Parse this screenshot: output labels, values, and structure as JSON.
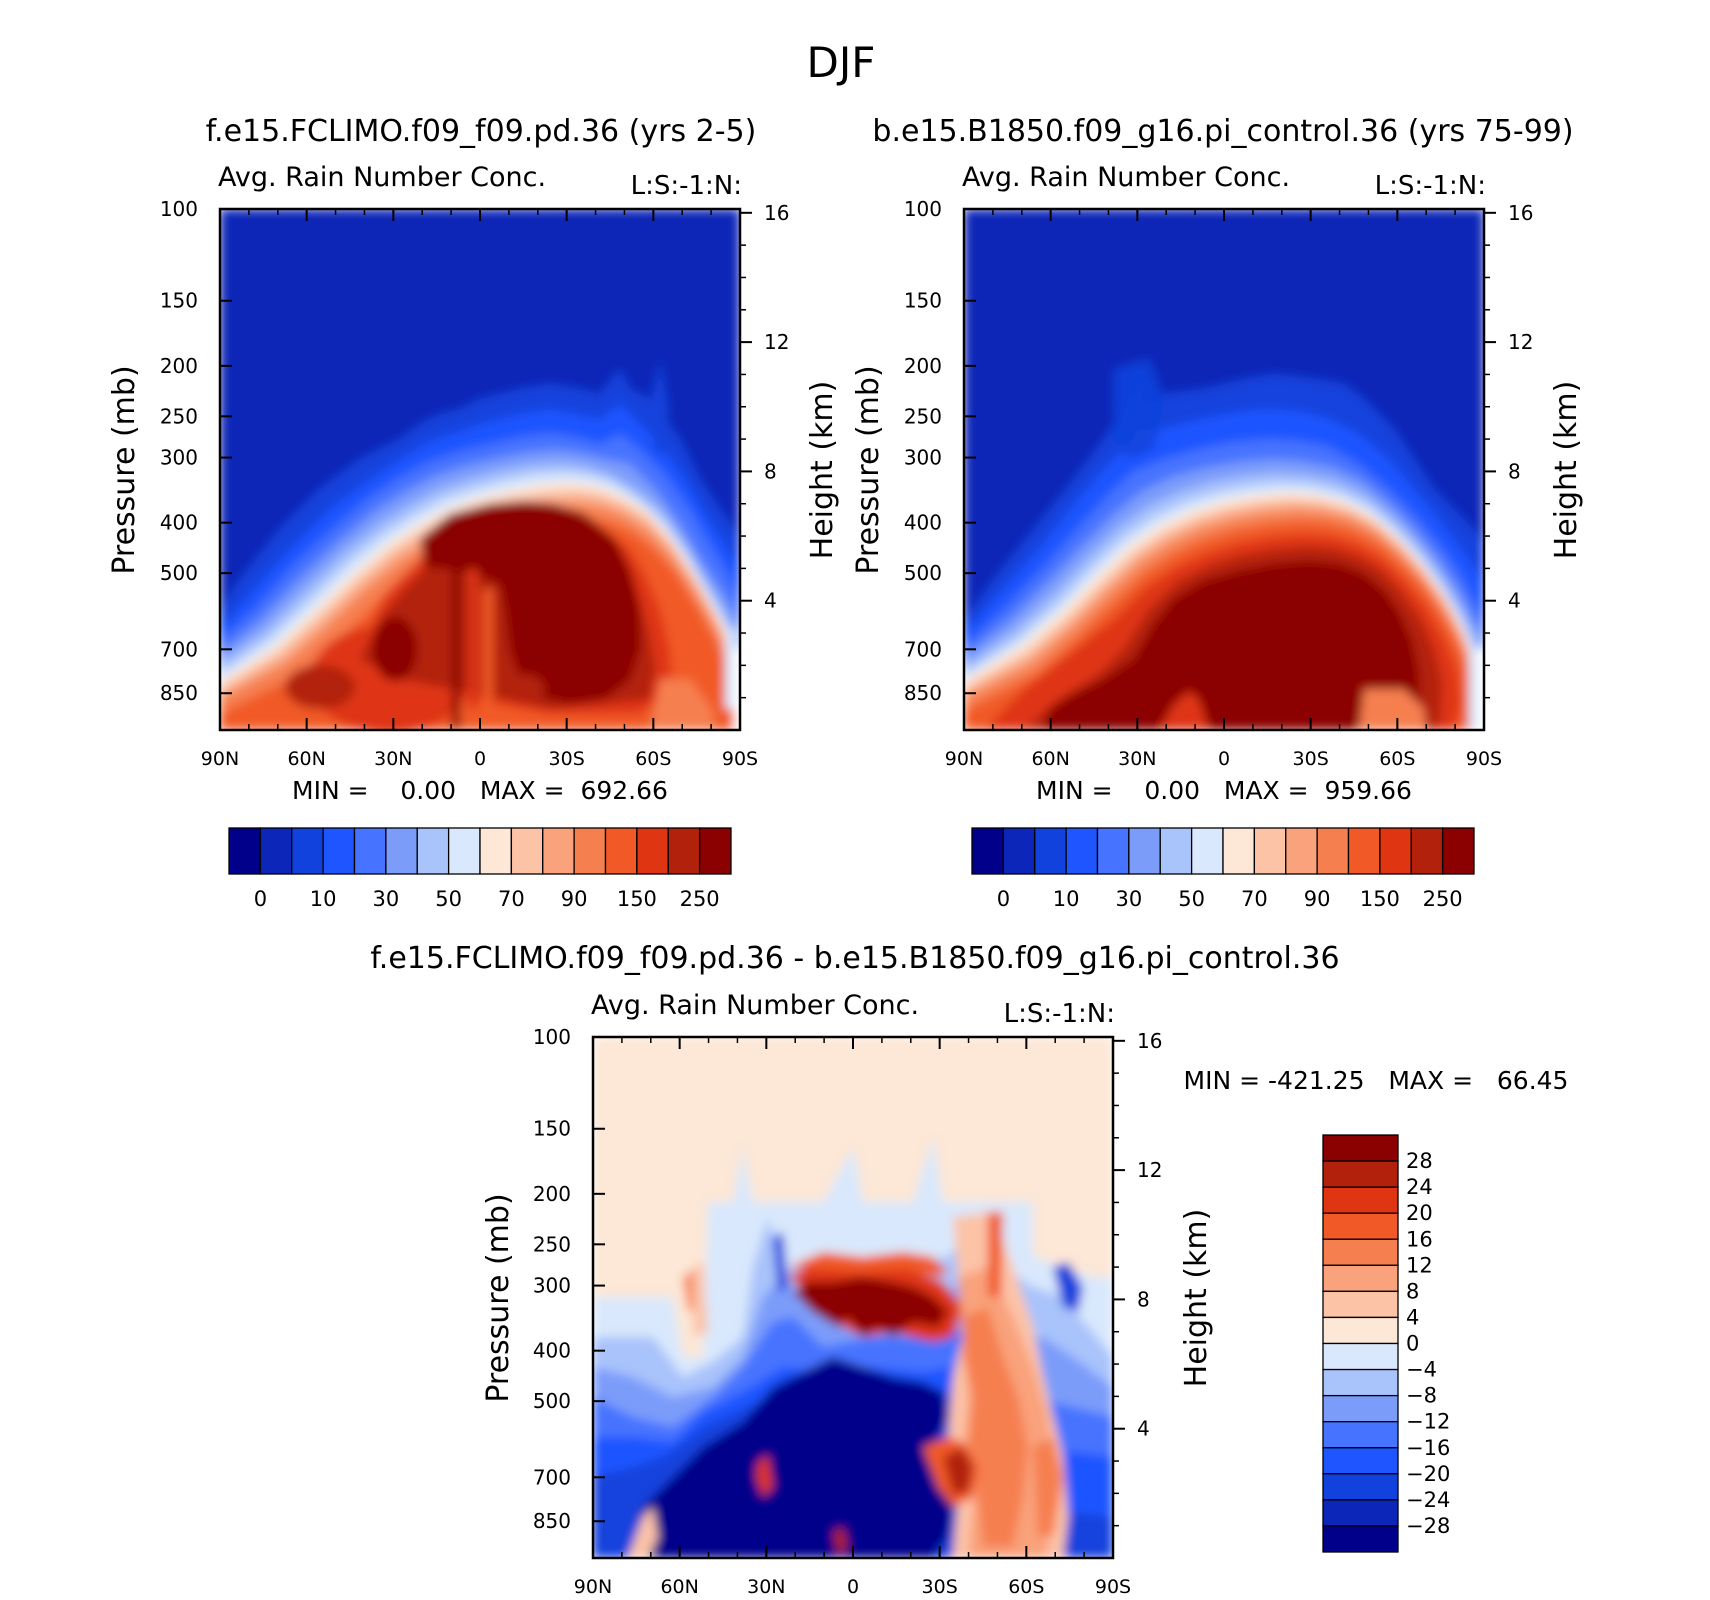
{
  "figure": {
    "season": "DJF",
    "panel_a_title": "f.e15.FCLIMO.f09_f09.pd.36 (yrs 2-5)",
    "panel_b_title": "b.e15.B1850.f09_g16.pi_control.36 (yrs 75-99)",
    "panel_c_title": "f.e15.FCLIMO.f09_f09.pd.36 - b.e15.B1850.f09_g16.pi_control.36"
  },
  "chart_data": [
    {
      "type": "heatmap",
      "id": "panel_a",
      "subtitle": "Avg. Rain Number Conc.",
      "units_label": "L:S:-1:N:",
      "xlabel": "",
      "ylabel": "Pressure (mb)",
      "y2label": "Height (km)",
      "x_ticks": [
        "90N",
        "60N",
        "30N",
        "0",
        "30S",
        "60S",
        "90S"
      ],
      "y_ticks": [
        100,
        150,
        200,
        250,
        300,
        400,
        500,
        700,
        850
      ],
      "y_ticks_text": [
        "100",
        "150",
        "200",
        "250",
        "300",
        "400",
        "500",
        "700",
        "850"
      ],
      "y2_ticks": [
        4,
        8,
        12,
        16
      ],
      "y2_ticks_text": [
        "4",
        "8",
        "12",
        "16"
      ],
      "ylim": [
        100,
        1000
      ],
      "stats": "MIN =    0.00   MAX =  692.66",
      "min": 0.0,
      "max": 692.66,
      "colorbar_labels": [
        "0",
        "10",
        "30",
        "50",
        "70",
        "90",
        "150",
        "250"
      ],
      "colorbar_colors": [
        "#00008b",
        "#0b26b8",
        "#1242dd",
        "#1f55ff",
        "#4673ff",
        "#7c9cfa",
        "#a9c3fb",
        "#d9e8fc",
        "#fde7d6",
        "#fcc3a7",
        "#f9a27c",
        "#f67f50",
        "#f15a26",
        "#df3512",
        "#b2210b",
        "#8b0000"
      ]
    },
    {
      "type": "heatmap",
      "id": "panel_b",
      "subtitle": "Avg. Rain Number Conc.",
      "units_label": "L:S:-1:N:",
      "xlabel": "",
      "ylabel": "Pressure (mb)",
      "y2label": "Height (km)",
      "x_ticks": [
        "90N",
        "60N",
        "30N",
        "0",
        "30S",
        "60S",
        "90S"
      ],
      "y_ticks": [
        100,
        150,
        200,
        250,
        300,
        400,
        500,
        700,
        850
      ],
      "y_ticks_text": [
        "100",
        "150",
        "200",
        "250",
        "300",
        "400",
        "500",
        "700",
        "850"
      ],
      "y2_ticks": [
        4,
        8,
        12,
        16
      ],
      "y2_ticks_text": [
        "4",
        "8",
        "12",
        "16"
      ],
      "ylim": [
        100,
        1000
      ],
      "stats": "MIN =    0.00   MAX =  959.66",
      "min": 0.0,
      "max": 959.66,
      "colorbar_labels": [
        "0",
        "10",
        "30",
        "50",
        "70",
        "90",
        "150",
        "250"
      ],
      "colorbar_colors": [
        "#00008b",
        "#0b26b8",
        "#1242dd",
        "#1f55ff",
        "#4673ff",
        "#7c9cfa",
        "#a9c3fb",
        "#d9e8fc",
        "#fde7d6",
        "#fcc3a7",
        "#f9a27c",
        "#f67f50",
        "#f15a26",
        "#df3512",
        "#b2210b",
        "#8b0000"
      ]
    },
    {
      "type": "heatmap",
      "id": "panel_c",
      "subtitle": "Avg. Rain Number Conc.",
      "units_label": "L:S:-1:N:",
      "xlabel": "",
      "ylabel": "Pressure (mb)",
      "y2label": "Height (km)",
      "x_ticks": [
        "90N",
        "60N",
        "30N",
        "0",
        "30S",
        "60S",
        "90S"
      ],
      "y_ticks": [
        100,
        150,
        200,
        250,
        300,
        400,
        500,
        700,
        850
      ],
      "y_ticks_text": [
        "100",
        "150",
        "200",
        "250",
        "300",
        "400",
        "500",
        "700",
        "850"
      ],
      "y2_ticks": [
        4,
        8,
        12,
        16
      ],
      "y2_ticks_text": [
        "4",
        "8",
        "12",
        "16"
      ],
      "ylim": [
        100,
        1000
      ],
      "stats": "MIN = -421.25   MAX =   66.45",
      "min": -421.25,
      "max": 66.45,
      "colorbar_labels": [
        "28",
        "24",
        "20",
        "16",
        "12",
        "8",
        "4",
        "0",
        "-4",
        "-8",
        "-12",
        "-16",
        "-20",
        "-24",
        "-28"
      ],
      "colorbar_colors": [
        "#8b0000",
        "#b2210b",
        "#df3512",
        "#f15a26",
        "#f67f50",
        "#f9a27c",
        "#fcc3a7",
        "#fde7d6",
        "#d9e8fc",
        "#a9c3fb",
        "#7c9cfa",
        "#4673ff",
        "#1f55ff",
        "#1242dd",
        "#0b26b8",
        "#00008b"
      ]
    }
  ]
}
